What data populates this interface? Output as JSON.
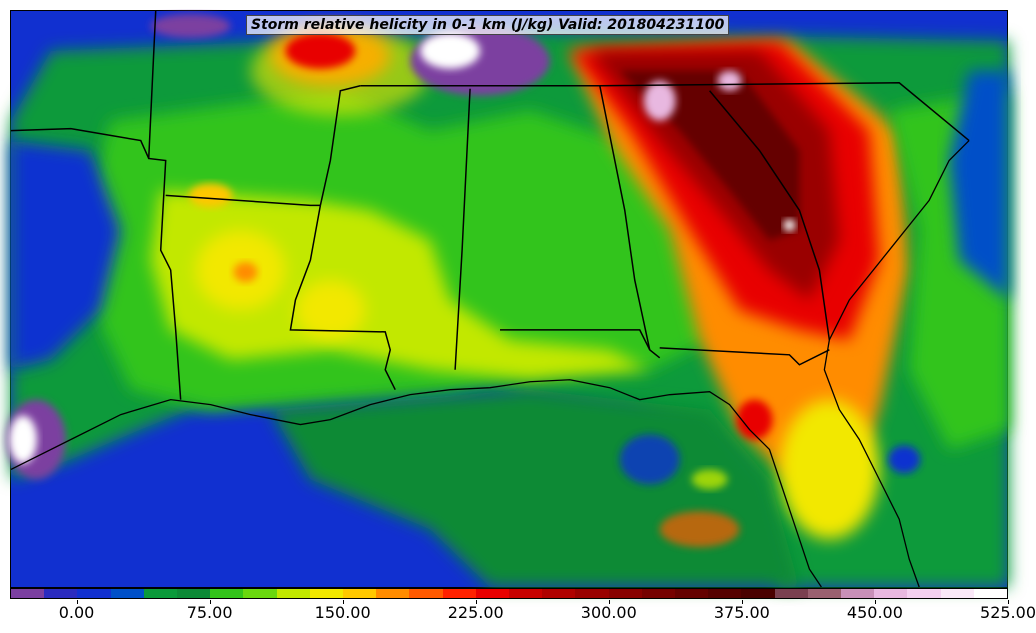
{
  "title": "Storm relative helicity in 0-1 km (J/kg) Valid: 201804231100",
  "colorbar": {
    "colors": [
      "#7b3fa0",
      "#2b2bbf",
      "#1130d0",
      "#0050c8",
      "#0a9a3a",
      "#0c8a36",
      "#33c41a",
      "#6ad80e",
      "#c2e800",
      "#f2e800",
      "#ffc800",
      "#ff8c00",
      "#ff5a00",
      "#ff2200",
      "#e80000",
      "#c80000",
      "#b00000",
      "#9a0000",
      "#880000",
      "#760000",
      "#650000",
      "#560000",
      "#4a0000",
      "#7a4050",
      "#9a6070",
      "#c890b8",
      "#e8b8e0",
      "#f4d0f0",
      "#fae8f8",
      "#ffffff"
    ],
    "labels": [
      "0.00",
      "75.00",
      "150.00",
      "225.00",
      "300.00",
      "375.00",
      "450.00",
      "525.00"
    ]
  },
  "map_layers": {
    "ocean_color": "#1130d0",
    "land_base_color": "#0a9a3a",
    "border_color": "#000000"
  }
}
